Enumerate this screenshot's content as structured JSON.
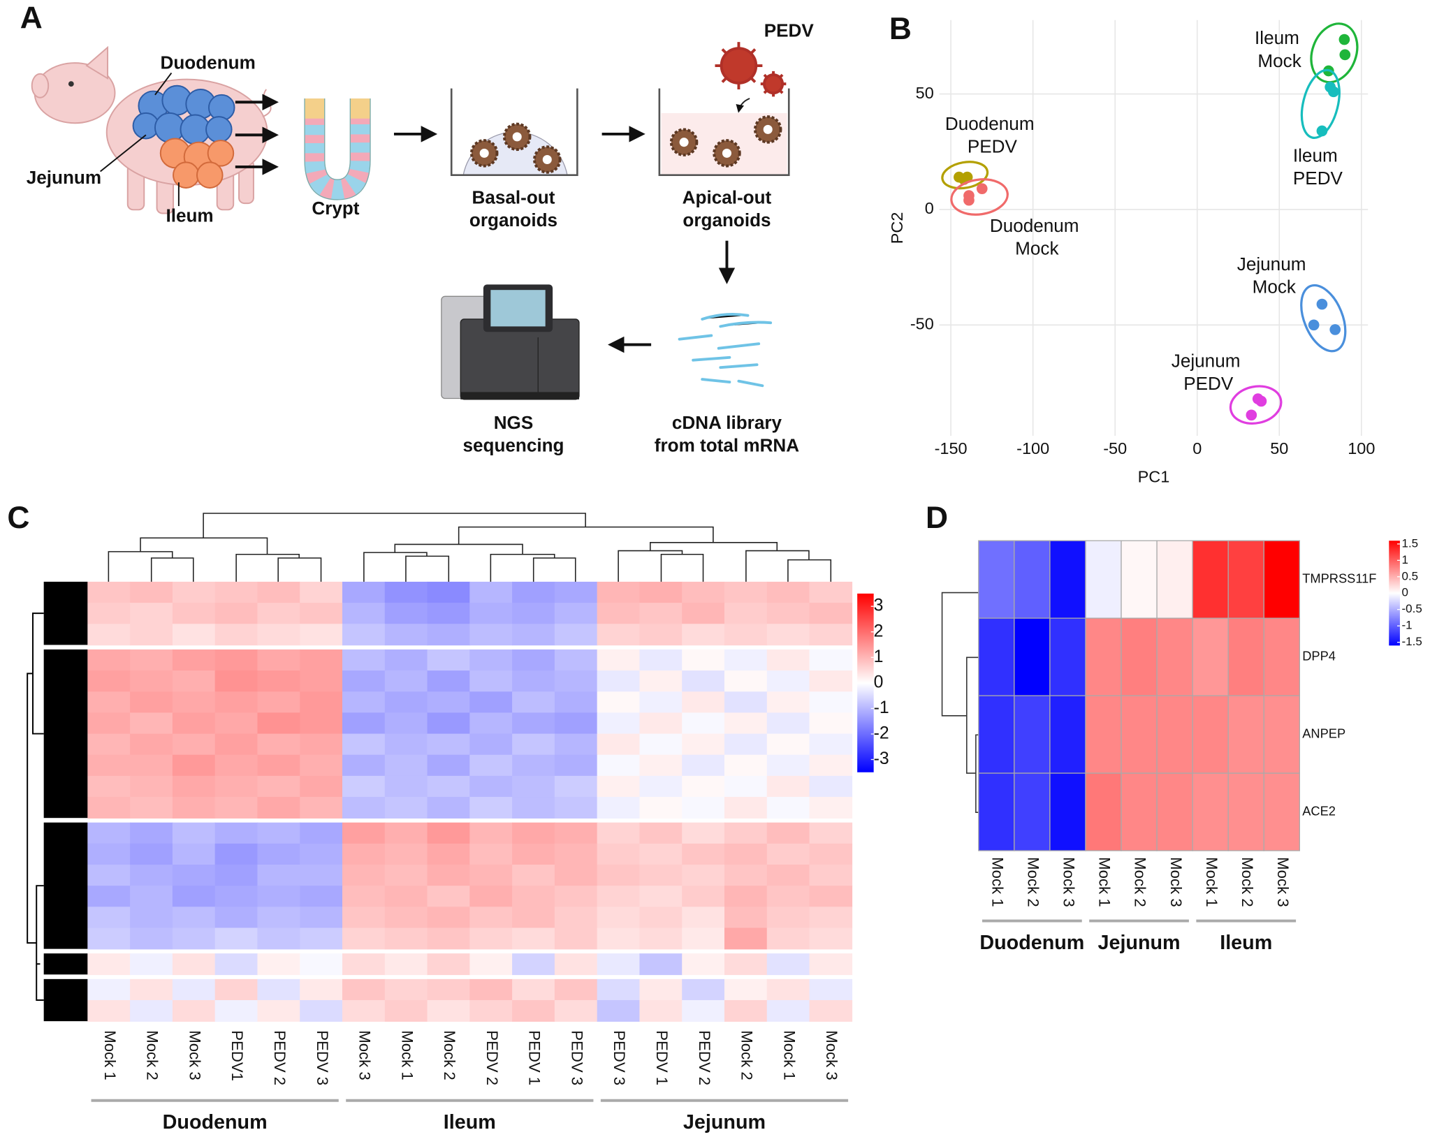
{
  "panel_labels": [
    "A",
    "B",
    "C",
    "D"
  ],
  "diagram": {
    "labels": [
      {
        "lines": [
          "PEDV"
        ]
      },
      {
        "lines": [
          "Duodenum"
        ]
      },
      {
        "lines": [
          "Jejunum"
        ]
      },
      {
        "lines": [
          "Ileum"
        ]
      },
      {
        "lines": [
          "Crypt"
        ]
      },
      {
        "lines": [
          "Basal-out",
          "organoids"
        ]
      },
      {
        "lines": [
          "Apical-out",
          "organoids"
        ]
      },
      {
        "lines": [
          "NGS",
          "sequencing"
        ]
      },
      {
        "lines": [
          "cDNA library",
          "from total mRNA"
        ]
      }
    ]
  },
  "chart_data": [
    {
      "type": "scatter",
      "xlabel": "PC1",
      "ylabel": "PC2",
      "xlim": [
        -157,
        104
      ],
      "ylim": [
        -98,
        82
      ],
      "xticks": [
        -150,
        -100,
        -50,
        0,
        50,
        100
      ],
      "yticks": [
        50,
        0,
        -50
      ],
      "grid": true,
      "series": [
        {
          "name": "Ileum Mock",
          "color": "#1fb53a",
          "x": [
            89.6,
            90,
            80
          ],
          "values": [
            73.6,
            67,
            60
          ]
        },
        {
          "name": "Ileum PEDV",
          "color": "#17bdbd",
          "x": [
            81,
            83,
            76
          ],
          "values": [
            53,
            51,
            34
          ]
        },
        {
          "name": "Duodenum PEDV",
          "color": "#b3a000",
          "x": [
            -145,
            -140,
            -142
          ],
          "values": [
            14,
            14,
            13
          ]
        },
        {
          "name": "Duodenum Mock",
          "color": "#f06a6a",
          "x": [
            -139,
            -131,
            -139
          ],
          "values": [
            6,
            9,
            4
          ]
        },
        {
          "name": "Jejunum Mock",
          "color": "#4a8fdc",
          "x": [
            76,
            71,
            84
          ],
          "values": [
            -41,
            -50,
            -52
          ]
        },
        {
          "name": "Jejunum PEDV",
          "color": "#e03ee0",
          "x": [
            37,
            39,
            33
          ],
          "values": [
            -82,
            -83,
            -89
          ]
        }
      ]
    },
    {
      "type": "heatmap",
      "categories": [
        "Mock 1",
        "Mock 2",
        "Mock 3",
        "PEDV1",
        "PEDV 2",
        "PEDV 3",
        "Mock 3",
        "Mock 1",
        "Mock 2",
        "PEDV 2",
        "PEDV 1",
        "PEDV 3",
        "PEDV 3",
        "PEDV 1",
        "PEDV 2",
        "Mock 2",
        "Mock 1",
        "Mock 3"
      ],
      "groups": [
        "Duodenum",
        "Ileum",
        "Jejunum"
      ],
      "zlim": [
        -3.5,
        3.5
      ],
      "zticks": [
        3,
        2,
        1,
        0,
        -1,
        -2,
        -3
      ],
      "colorscale": [
        "#0000ff",
        "#ffffff",
        "#ff0000"
      ],
      "z": [
        [
          0.8,
          0.9,
          0.7,
          0.8,
          0.9,
          0.6,
          -1.2,
          -1.5,
          -1.6,
          -1.0,
          -1.3,
          -1.2,
          1.0,
          1.1,
          0.9,
          0.8,
          0.9,
          0.7
        ],
        [
          0.7,
          0.6,
          0.8,
          0.9,
          0.7,
          0.8,
          -1.0,
          -1.3,
          -1.4,
          -1.1,
          -1.2,
          -1.0,
          0.9,
          0.8,
          1.0,
          0.7,
          0.8,
          0.9
        ],
        [
          0.5,
          0.6,
          0.4,
          0.6,
          0.5,
          0.4,
          -0.8,
          -1.0,
          -1.1,
          -0.9,
          -1.0,
          -0.8,
          0.6,
          0.7,
          0.5,
          0.6,
          0.5,
          0.6
        ],
        [
          1.2,
          1.1,
          1.3,
          1.4,
          1.2,
          1.3,
          -0.9,
          -1.1,
          -0.8,
          -1.0,
          -1.2,
          -0.9,
          0.2,
          -0.3,
          0.1,
          -0.2,
          0.3,
          -0.1
        ],
        [
          1.3,
          1.2,
          1.1,
          1.5,
          1.4,
          1.3,
          -1.2,
          -1.0,
          -1.3,
          -0.9,
          -1.1,
          -1.0,
          -0.3,
          0.2,
          -0.4,
          0.1,
          -0.2,
          0.3
        ],
        [
          1.1,
          1.3,
          1.2,
          1.3,
          1.2,
          1.4,
          -1.0,
          -1.2,
          -1.1,
          -1.3,
          -0.9,
          -1.1,
          0.1,
          -0.2,
          0.3,
          -0.4,
          0.2,
          -0.1
        ],
        [
          1.2,
          1.0,
          1.3,
          1.2,
          1.5,
          1.4,
          -1.3,
          -1.1,
          -1.4,
          -1.0,
          -1.2,
          -1.3,
          -0.2,
          0.3,
          -0.1,
          0.2,
          -0.3,
          0.1
        ],
        [
          1.0,
          1.2,
          1.1,
          1.3,
          1.1,
          1.2,
          -0.8,
          -1.0,
          -0.9,
          -1.1,
          -0.8,
          -1.0,
          0.3,
          -0.1,
          0.2,
          -0.3,
          0.1,
          -0.2
        ],
        [
          1.1,
          1.1,
          1.4,
          1.2,
          1.3,
          1.1,
          -1.1,
          -0.9,
          -1.2,
          -0.8,
          -1.0,
          -1.1,
          -0.1,
          0.2,
          -0.3,
          0.1,
          -0.2,
          0.2
        ],
        [
          0.9,
          1.0,
          1.2,
          1.1,
          1.0,
          1.2,
          -0.7,
          -0.9,
          -0.8,
          -1.0,
          -0.9,
          -0.7,
          0.2,
          -0.2,
          0.1,
          -0.1,
          0.3,
          -0.3
        ],
        [
          1.0,
          0.9,
          1.1,
          1.0,
          1.2,
          1.0,
          -0.9,
          -0.8,
          -1.0,
          -0.7,
          -0.9,
          -0.8,
          -0.2,
          0.1,
          -0.1,
          0.3,
          -0.1,
          0.2
        ],
        [
          -1.0,
          -1.2,
          -0.9,
          -1.1,
          -1.0,
          -1.2,
          1.3,
          1.1,
          1.4,
          1.0,
          1.2,
          1.1,
          0.6,
          0.8,
          0.5,
          0.7,
          0.9,
          0.6
        ],
        [
          -1.1,
          -1.3,
          -1.0,
          -1.4,
          -1.2,
          -1.1,
          1.1,
          1.0,
          1.2,
          0.9,
          1.1,
          1.0,
          0.7,
          0.6,
          0.8,
          0.9,
          0.7,
          0.8
        ],
        [
          -0.9,
          -1.1,
          -1.2,
          -1.3,
          -1.0,
          -1.0,
          1.0,
          0.9,
          1.1,
          1.0,
          0.8,
          1.0,
          0.8,
          0.7,
          0.6,
          0.8,
          0.9,
          0.7
        ],
        [
          -1.2,
          -1.0,
          -1.3,
          -1.2,
          -1.1,
          -1.2,
          0.9,
          1.0,
          0.8,
          1.1,
          0.9,
          0.8,
          0.6,
          0.5,
          0.7,
          1.0,
          0.8,
          0.9
        ],
        [
          -0.8,
          -1.0,
          -0.9,
          -1.1,
          -0.9,
          -1.0,
          0.8,
          0.9,
          1.0,
          0.8,
          0.9,
          0.7,
          0.5,
          0.6,
          0.4,
          0.9,
          0.7,
          0.6
        ],
        [
          -0.7,
          -0.9,
          -0.8,
          -0.6,
          -0.8,
          -0.7,
          0.6,
          0.7,
          0.8,
          0.6,
          0.5,
          0.7,
          0.4,
          0.5,
          0.3,
          1.2,
          0.6,
          0.5
        ],
        [
          0.3,
          -0.2,
          0.4,
          -0.5,
          0.2,
          -0.1,
          0.5,
          0.3,
          0.6,
          0.2,
          -0.6,
          0.4,
          -0.3,
          -0.8,
          0.2,
          0.5,
          -0.4,
          0.3
        ],
        [
          -0.2,
          0.4,
          -0.3,
          0.6,
          -0.4,
          0.3,
          0.8,
          0.6,
          0.7,
          0.9,
          0.5,
          0.8,
          -0.5,
          0.3,
          -0.6,
          0.2,
          0.4,
          -0.3
        ],
        [
          0.4,
          -0.3,
          0.5,
          -0.2,
          0.3,
          -0.5,
          0.5,
          0.7,
          0.4,
          0.6,
          0.8,
          0.5,
          -0.8,
          0.4,
          -0.2,
          0.6,
          -0.3,
          0.5
        ]
      ]
    },
    {
      "type": "heatmap",
      "categories": [
        "Mock 1",
        "Mock 2",
        "Mock 3",
        "Mock 1",
        "Mock 2",
        "Mock 3",
        "Mock 1",
        "Mock 2",
        "Mock 3"
      ],
      "groups": [
        "Duodenum",
        "Jejunum",
        "Ileum"
      ],
      "row_labels": [
        "TMPRSS11F",
        "DPP4",
        "ANPEP",
        "ACE2"
      ],
      "zlim": [
        -1.6,
        1.6
      ],
      "zticks": [
        1.5,
        1,
        0.5,
        0,
        -0.5,
        -1,
        -1.5
      ],
      "colorscale": [
        "#0000ff",
        "#ffffff",
        "#ff0000"
      ],
      "z": [
        [
          -0.9,
          -1.0,
          -1.5,
          -0.1,
          0.05,
          0.1,
          1.3,
          1.2,
          1.6
        ],
        [
          -1.3,
          -1.6,
          -1.3,
          0.75,
          0.8,
          0.75,
          0.65,
          0.8,
          0.75
        ],
        [
          -1.3,
          -1.2,
          -1.4,
          0.75,
          0.75,
          0.75,
          0.75,
          0.7,
          0.7
        ],
        [
          -1.3,
          -1.2,
          -1.5,
          0.85,
          0.75,
          0.75,
          0.7,
          0.7,
          0.7
        ]
      ]
    }
  ]
}
